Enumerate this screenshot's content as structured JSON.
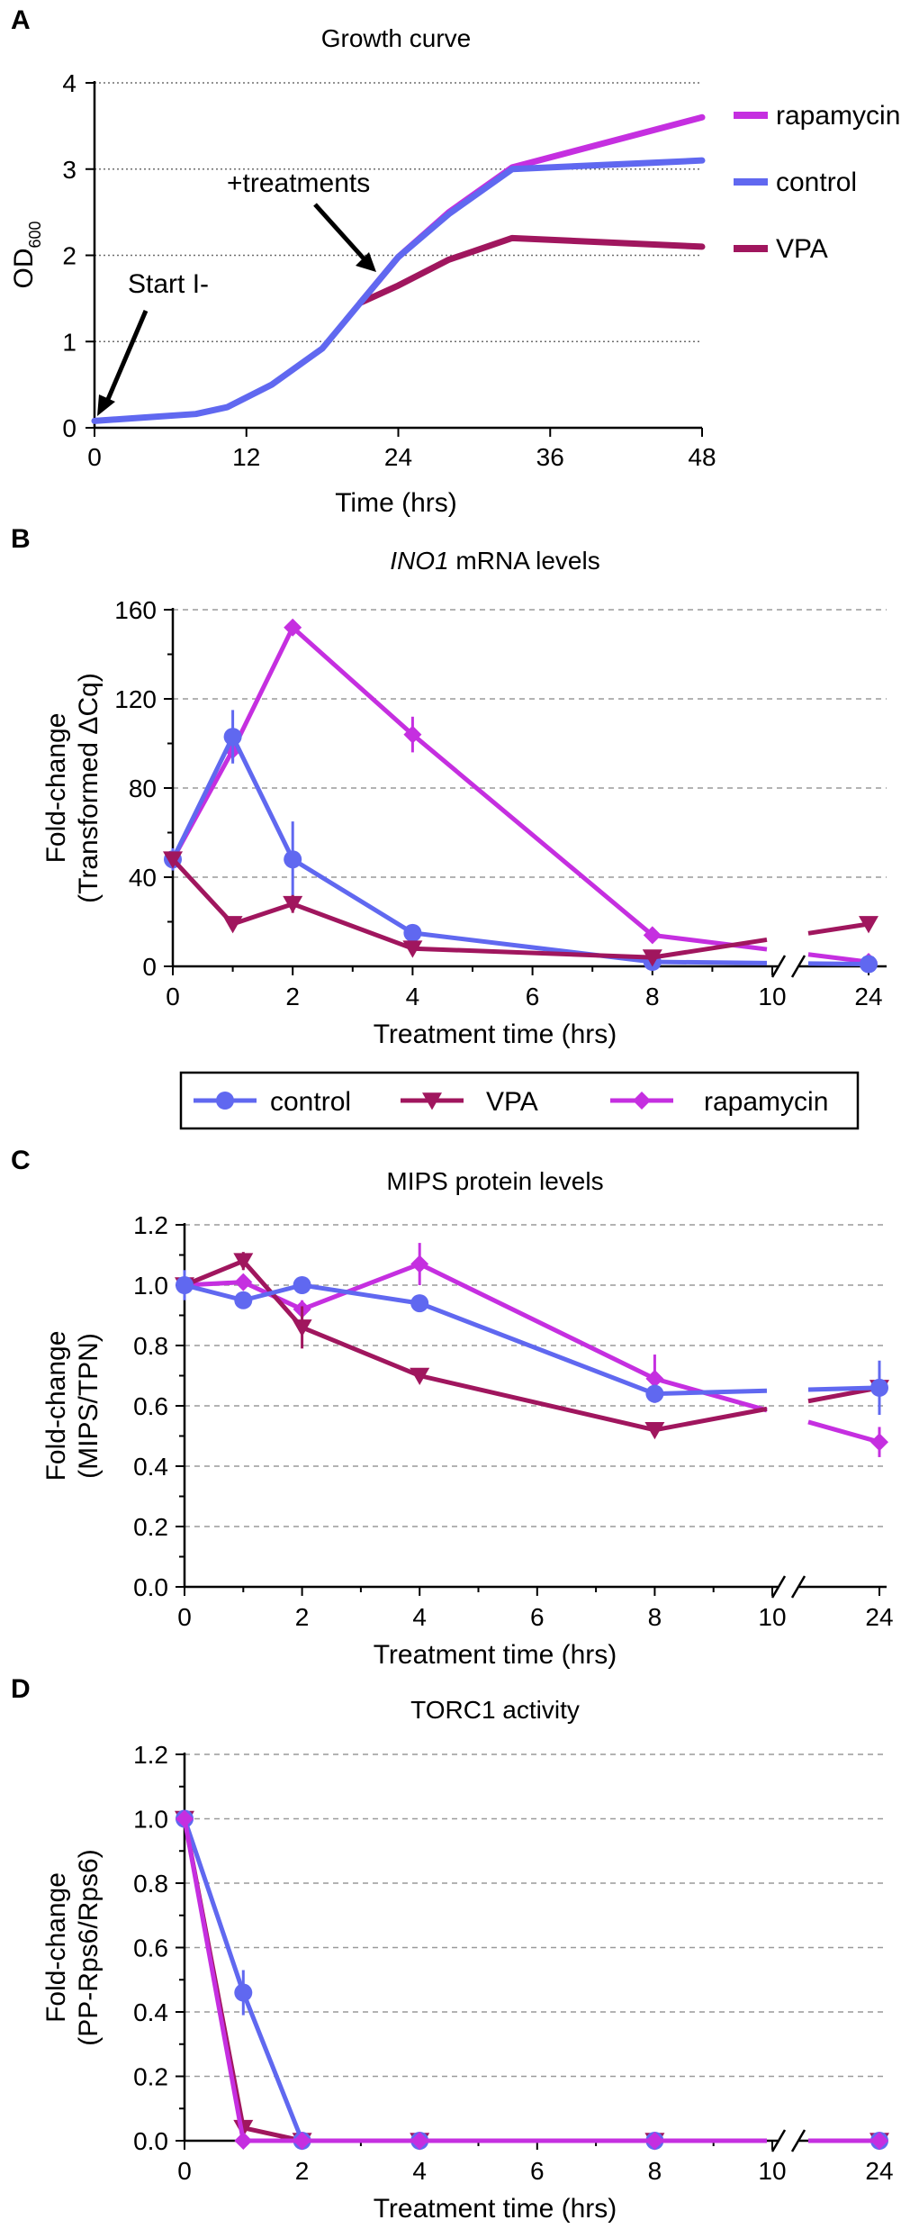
{
  "colors": {
    "control": "#6068f0",
    "VPA": "#a0165e",
    "rapamycin": "#c52fe0",
    "axis": "#000000",
    "grid": "#8c8c8c"
  },
  "legend": [
    {
      "key": "control",
      "label": "control",
      "marker": "circle"
    },
    {
      "key": "VPA",
      "label": "VPA",
      "marker": "triangle-down"
    },
    {
      "key": "rapamycin",
      "label": "rapamycin",
      "marker": "diamond"
    }
  ],
  "chart_data": [
    {
      "id": "A",
      "panel_label": "A",
      "type": "line",
      "title": "Growth curve",
      "xlabel": "Time (hrs)",
      "ylabel": "OD",
      "ylabel_sub": "600",
      "xlim": [
        0,
        48
      ],
      "ylim": [
        0,
        4
      ],
      "xticks": [
        0,
        12,
        24,
        36,
        48
      ],
      "yticks": [
        0,
        1,
        2,
        3,
        4
      ],
      "grid": "horizontal dotted",
      "legend_position": "right",
      "series": [
        {
          "name": "rapamycin",
          "x": [
            21,
            24,
            28,
            33,
            48
          ],
          "y": [
            1.45,
            1.98,
            2.5,
            3.02,
            3.6
          ]
        },
        {
          "name": "VPA",
          "x": [
            21,
            24,
            28,
            33,
            48
          ],
          "y": [
            1.45,
            1.65,
            1.95,
            2.2,
            2.1
          ]
        },
        {
          "name": "control",
          "x": [
            0,
            4,
            8,
            10.5,
            14,
            18,
            21,
            24,
            28,
            33,
            48
          ],
          "y": [
            0.08,
            0.12,
            0.16,
            0.24,
            0.5,
            0.92,
            1.45,
            1.98,
            2.48,
            3.0,
            3.1
          ]
        }
      ],
      "annotations": [
        {
          "text": "Start I-",
          "x": 0.3,
          "y": 0.12
        },
        {
          "text": "+treatments",
          "x": 22,
          "y": 1.72
        }
      ]
    },
    {
      "id": "B",
      "panel_label": "B",
      "type": "line",
      "title_italic": "INO1",
      "title_rest": " mRNA levels",
      "xlabel": "Treatment time (hrs)",
      "ylabel": [
        "Fold-change",
        "(Transformed ΔCq)"
      ],
      "ylim": [
        0,
        160
      ],
      "yticks": [
        0,
        40,
        80,
        120,
        160
      ],
      "xticks": [
        0,
        2,
        4,
        6,
        8,
        10,
        24
      ],
      "break_after": 10,
      "grid": "horizontal dashed",
      "series": [
        {
          "name": "control",
          "x": [
            0,
            1,
            2,
            4,
            8,
            24
          ],
          "y": [
            48,
            103,
            48,
            15,
            2,
            1
          ],
          "err": [
            5,
            12,
            17,
            3,
            2,
            1
          ]
        },
        {
          "name": "VPA",
          "x": [
            0,
            1,
            2,
            4,
            8,
            24
          ],
          "y": [
            48,
            19,
            28,
            8,
            4,
            19
          ],
          "err": [
            3,
            3,
            4,
            2,
            1,
            2
          ]
        },
        {
          "name": "rapamycin",
          "x": [
            0,
            1,
            2,
            4,
            8,
            24
          ],
          "y": [
            48,
            97,
            152,
            104,
            14,
            2
          ],
          "err": [
            3,
            5,
            3,
            8,
            2,
            1
          ]
        }
      ]
    },
    {
      "id": "C",
      "panel_label": "C",
      "type": "line",
      "title": "MIPS protein levels",
      "xlabel": "Treatment time (hrs)",
      "ylabel": [
        "Fold-change",
        "(MIPS/TPN)"
      ],
      "ylim": [
        0,
        1.2
      ],
      "yticks": [
        0.0,
        0.2,
        0.4,
        0.6,
        0.8,
        1.0,
        1.2
      ],
      "ytick_labels": [
        "0.0",
        "0.2",
        "0.4",
        "0.6",
        "0.8",
        "1.0",
        "1.2"
      ],
      "xticks": [
        0,
        2,
        4,
        6,
        8,
        10,
        24
      ],
      "break_after": 10,
      "grid": "horizontal dashed",
      "series": [
        {
          "name": "control",
          "x": [
            0,
            1,
            2,
            4,
            8,
            24
          ],
          "y": [
            1.0,
            0.95,
            1.0,
            0.94,
            0.64,
            0.66
          ],
          "err": [
            0.05,
            0.02,
            0.02,
            0.02,
            0.03,
            0.09
          ]
        },
        {
          "name": "VPA",
          "x": [
            0,
            1,
            2,
            4,
            8,
            24
          ],
          "y": [
            1.0,
            1.08,
            0.86,
            0.7,
            0.52,
            0.66
          ],
          "err": [
            0.02,
            0.03,
            0.07,
            0.02,
            0.02,
            0.05
          ]
        },
        {
          "name": "rapamycin",
          "x": [
            0,
            1,
            2,
            4,
            8,
            24
          ],
          "y": [
            1.0,
            1.01,
            0.92,
            1.07,
            0.69,
            0.48
          ],
          "err": [
            0.03,
            0.02,
            0.03,
            0.07,
            0.08,
            0.05
          ]
        }
      ]
    },
    {
      "id": "D",
      "panel_label": "D",
      "type": "line",
      "title": "TORC1 activity",
      "xlabel": "Treatment time (hrs)",
      "ylabel": [
        "Fold-change",
        "(PP-Rps6/Rps6)"
      ],
      "ylim": [
        0,
        1.2
      ],
      "yticks": [
        0.0,
        0.2,
        0.4,
        0.6,
        0.8,
        1.0,
        1.2
      ],
      "ytick_labels": [
        "0.0",
        "0.2",
        "0.4",
        "0.6",
        "0.8",
        "1.0",
        "1.2"
      ],
      "xticks": [
        0,
        2,
        4,
        6,
        8,
        10,
        24
      ],
      "break_after": 10,
      "grid": "horizontal dashed",
      "series": [
        {
          "name": "control",
          "x": [
            0,
            1,
            2,
            4,
            8,
            24
          ],
          "y": [
            1.0,
            0.46,
            0.0,
            0.0,
            0.0,
            0.0
          ],
          "err": [
            0.02,
            0.07,
            0,
            0,
            0,
            0
          ]
        },
        {
          "name": "VPA",
          "x": [
            0,
            1,
            2,
            4,
            8,
            24
          ],
          "y": [
            1.0,
            0.04,
            0.0,
            0.0,
            0.0,
            0.0
          ],
          "err": [
            0,
            0,
            0,
            0,
            0,
            0
          ]
        },
        {
          "name": "rapamycin",
          "x": [
            0,
            1,
            2,
            4,
            8,
            24
          ],
          "y": [
            1.0,
            0.0,
            0.0,
            0.0,
            0.0,
            0.0
          ],
          "err": [
            0,
            0,
            0,
            0,
            0,
            0
          ]
        }
      ]
    }
  ]
}
